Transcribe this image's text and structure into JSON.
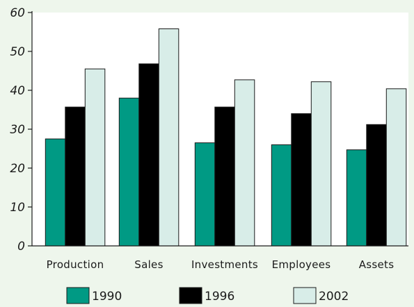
{
  "chart_data": {
    "type": "bar",
    "categories": [
      "Production",
      "Sales",
      "Investments",
      "Employees",
      "Assets"
    ],
    "series": [
      {
        "name": "1990",
        "values": [
          27.5,
          38,
          26.5,
          26,
          24.7
        ]
      },
      {
        "name": "1996",
        "values": [
          35.7,
          46.8,
          35.7,
          34,
          31.2
        ]
      },
      {
        "name": "2002",
        "values": [
          45.5,
          55.8,
          42.7,
          42.2,
          40.4
        ]
      }
    ],
    "ylim": [
      0,
      60
    ],
    "yticks": [
      "0",
      "10",
      "20",
      "30",
      "40",
      "50",
      "60"
    ],
    "grid": false,
    "legend_position": "bottom",
    "colors": {
      "1990": "#009a84",
      "1996": "#000000",
      "2002": "#d8ede8",
      "background": "#eef6ec",
      "plot_background": "#ffffff"
    }
  }
}
